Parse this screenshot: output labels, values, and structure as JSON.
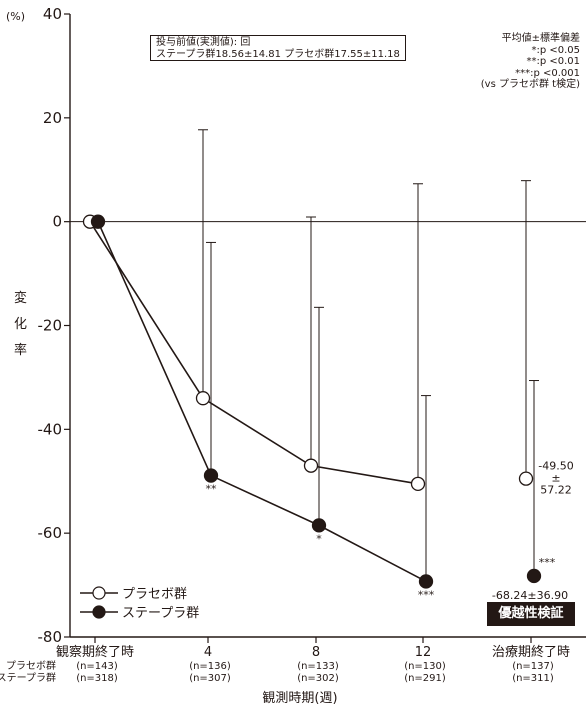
{
  "chart_data": {
    "type": "line",
    "y_unit": "(%)",
    "ylabel": "変化率",
    "xlabel": "観測時期(週)",
    "ylim": [
      -80,
      40
    ],
    "y_ticks": [
      "40",
      "20",
      "0",
      "-20",
      "-40",
      "-60",
      "-80"
    ],
    "categories": [
      "観察期終了時",
      "4",
      "8",
      "12",
      "治療期終了時"
    ],
    "row_labels": [
      "プラセボ群",
      "ステープラ群"
    ],
    "n_placebo": [
      "(n=143)",
      "(n=136)",
      "(n=133)",
      "(n=130)",
      "(n=137)"
    ],
    "n_stapra": [
      "(n=318)",
      "(n=307)",
      "(n=302)",
      "(n=291)",
      "(n=311)"
    ],
    "series": [
      {
        "name": "プラセボ群",
        "marker": "open-circle",
        "color": "#231815",
        "values": [
          0,
          -34.0,
          -47.0,
          -50.5,
          -49.5
        ],
        "sd_upper": [
          null,
          17.7,
          0.9,
          7.3,
          7.9
        ],
        "connected_points": 4
      },
      {
        "name": "ステープラ群",
        "marker": "filled-circle",
        "color": "#231815",
        "values": [
          0,
          -48.9,
          -58.5,
          -69.3,
          -68.24
        ],
        "sd_upper": [
          null,
          -4.0,
          -16.5,
          -33.5,
          -30.6
        ],
        "significance": [
          "",
          "**",
          "*",
          "***",
          "***"
        ],
        "connected_points": 4
      }
    ],
    "annotations": {
      "placebo_end_lines": [
        "-49.50",
        "±",
        "57.22"
      ],
      "stapra_end": "-68.24±36.90",
      "superiority_badge": "優越性検証"
    },
    "baseline_note": {
      "line1": "投与前値(実測値): 回",
      "line2": "ステープラ群18.56±14.81   プラセボ群17.55±11.18"
    },
    "stats_note": [
      "平均値±標準偏差",
      "*:p <0.05",
      "**:p <0.01",
      "***:p <0.001",
      "(vs プラセボ群 t検定)"
    ],
    "gridline_at_zero": true
  }
}
